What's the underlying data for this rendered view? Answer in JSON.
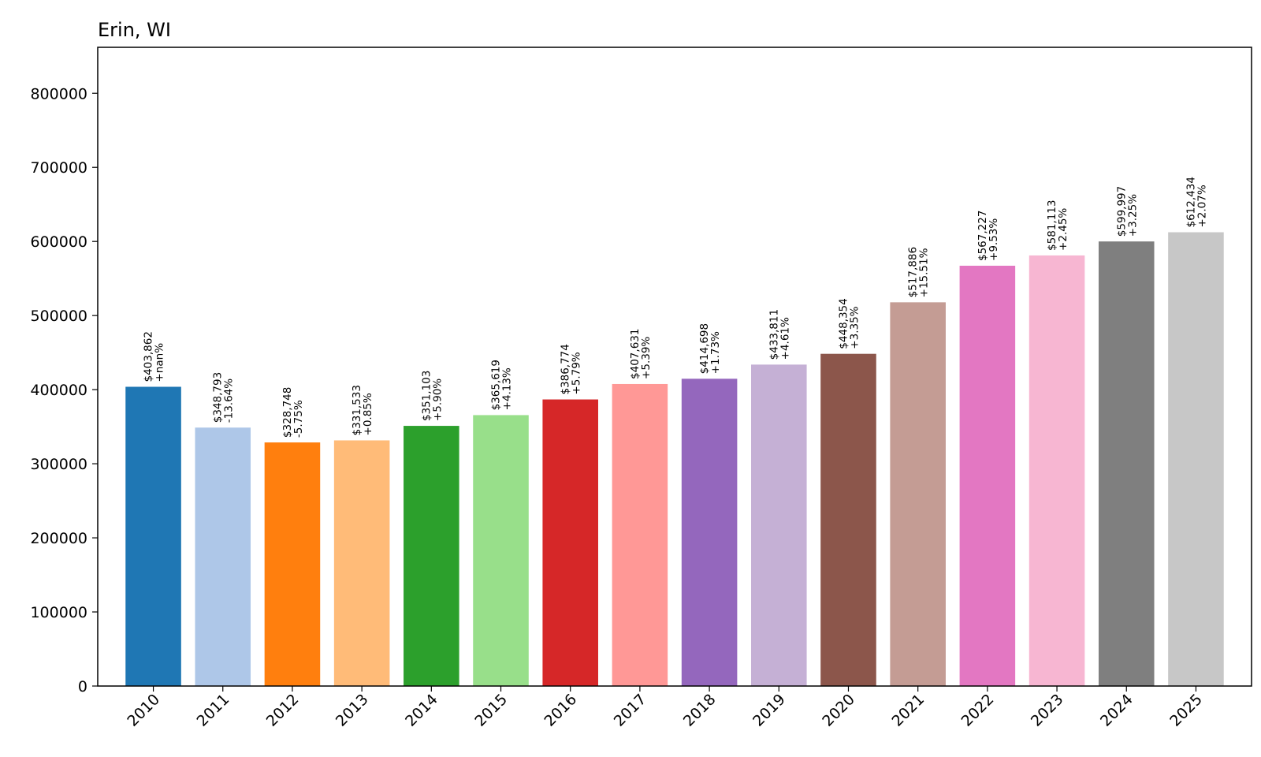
{
  "chart_data": {
    "type": "bar",
    "title": "Erin, WI",
    "xlabel": "",
    "ylabel": "",
    "ylim": [
      0,
      862000
    ],
    "yticks": [
      0,
      100000,
      200000,
      300000,
      400000,
      500000,
      600000,
      700000,
      800000
    ],
    "ytick_labels": [
      "0",
      "100000",
      "200000",
      "300000",
      "400000",
      "500000",
      "600000",
      "700000",
      "800000"
    ],
    "categories": [
      "2010",
      "2011",
      "2012",
      "2013",
      "2014",
      "2015",
      "2016",
      "2017",
      "2018",
      "2019",
      "2020",
      "2021",
      "2022",
      "2023",
      "2024",
      "2025"
    ],
    "values": [
      403862,
      348793,
      328748,
      331533,
      351103,
      365619,
      386774,
      407631,
      414698,
      433811,
      448354,
      517886,
      567227,
      581113,
      599997,
      612434
    ],
    "value_labels": [
      "$403,862",
      "$348,793",
      "$328,748",
      "$331,533",
      "$351,103",
      "$365,619",
      "$386,774",
      "$407,631",
      "$414,698",
      "$433,811",
      "$448,354",
      "$517,886",
      "$567,227",
      "$581,113",
      "$599,997",
      "$612,434"
    ],
    "change_labels": [
      "+nan%",
      "-13.64%",
      "-5.75%",
      "+0.85%",
      "+5.90%",
      "+4.13%",
      "+5.79%",
      "+5.39%",
      "+1.73%",
      "+4.61%",
      "+3.35%",
      "+15.51%",
      "+9.53%",
      "+2.45%",
      "+3.25%",
      "+2.07%"
    ],
    "colors": [
      "#1f77b4",
      "#aec7e8",
      "#ff7f0e",
      "#ffbb78",
      "#2ca02c",
      "#98df8a",
      "#d62728",
      "#ff9896",
      "#9467bd",
      "#c5b0d5",
      "#8c564b",
      "#c49c94",
      "#e377c2",
      "#f7b6d2",
      "#7f7f7f",
      "#c7c7c7"
    ],
    "grid": false,
    "legend": "none"
  }
}
